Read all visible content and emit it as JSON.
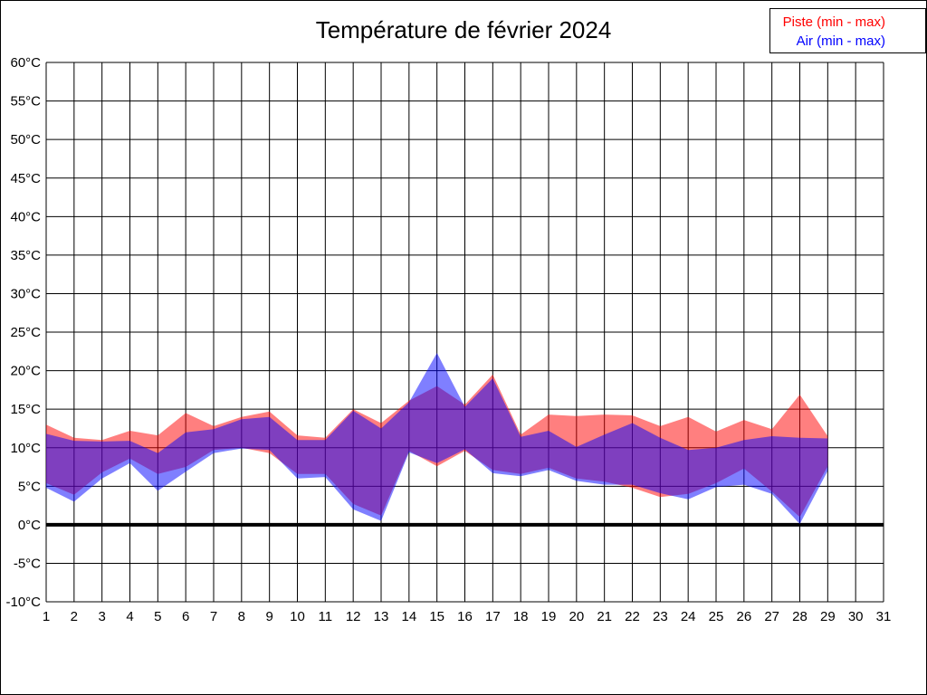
{
  "title": "Température de février 2024",
  "legend": {
    "items": [
      {
        "label": "Piste (min - max)",
        "color": "#ff0000"
      },
      {
        "label": "Air (min - max)",
        "color": "#0000ff"
      }
    ],
    "position": "top-right"
  },
  "chart_data": {
    "type": "area",
    "subtype": "min-max-bands",
    "title": "Température de février 2024",
    "xlabel": "",
    "ylabel": "",
    "y_unit": "°C",
    "ylim": [
      -10,
      60
    ],
    "ytick_step": 5,
    "x_ticks": [
      1,
      2,
      3,
      4,
      5,
      6,
      7,
      8,
      9,
      10,
      11,
      12,
      13,
      14,
      15,
      16,
      17,
      18,
      19,
      20,
      21,
      22,
      23,
      24,
      25,
      26,
      27,
      28,
      29,
      30,
      31
    ],
    "grid": true,
    "zero_line": true,
    "background": "#ffffff",
    "grid_color": "#000000",
    "overlap_color": "#8040bf",
    "days": [
      1,
      2,
      3,
      4,
      5,
      6,
      7,
      8,
      9,
      10,
      11,
      12,
      13,
      14,
      15,
      16,
      17,
      18,
      19,
      20,
      21,
      22,
      23,
      24,
      25,
      26,
      27,
      28,
      29
    ],
    "series": [
      {
        "name": "Piste (min - max)",
        "key": "piste-band",
        "color": "#ff0000",
        "fill_opacity": 0.5,
        "min": [
          5.4,
          3.9,
          6.8,
          8.6,
          6.6,
          7.5,
          9.7,
          10.0,
          9.3,
          6.6,
          6.6,
          2.7,
          1.2,
          9.6,
          7.6,
          9.6,
          7.1,
          6.6,
          7.4,
          6.0,
          5.6,
          4.8,
          3.6,
          4.0,
          5.4,
          7.3,
          4.3,
          1.0,
          7.6
        ],
        "max": [
          13.0,
          11.3,
          11.0,
          12.2,
          11.6,
          14.5,
          12.8,
          14.0,
          14.7,
          11.6,
          11.3,
          15.0,
          13.2,
          16.1,
          18.0,
          15.6,
          19.5,
          11.7,
          14.3,
          14.1,
          14.3,
          14.2,
          12.8,
          14.0,
          12.1,
          13.6,
          12.4,
          16.9,
          11.5
        ]
      },
      {
        "name": "Air (min - max)",
        "key": "air-band",
        "color": "#0000ff",
        "fill_opacity": 0.5,
        "min": [
          4.8,
          3.0,
          6.0,
          8.0,
          4.4,
          6.9,
          9.3,
          9.9,
          9.7,
          6.0,
          6.2,
          2.0,
          0.5,
          9.4,
          8.0,
          9.8,
          6.7,
          6.3,
          7.1,
          5.7,
          5.2,
          5.2,
          4.1,
          3.3,
          4.9,
          5.2,
          4.0,
          0.1,
          7.0
        ],
        "max": [
          11.8,
          10.9,
          10.8,
          10.9,
          9.3,
          12.0,
          12.4,
          13.7,
          14.0,
          11.0,
          11.0,
          14.8,
          12.5,
          15.9,
          22.3,
          15.3,
          19.0,
          11.4,
          12.2,
          10.1,
          11.7,
          13.2,
          11.3,
          9.7,
          10.0,
          11.0,
          11.5,
          11.3,
          11.2
        ]
      }
    ]
  }
}
